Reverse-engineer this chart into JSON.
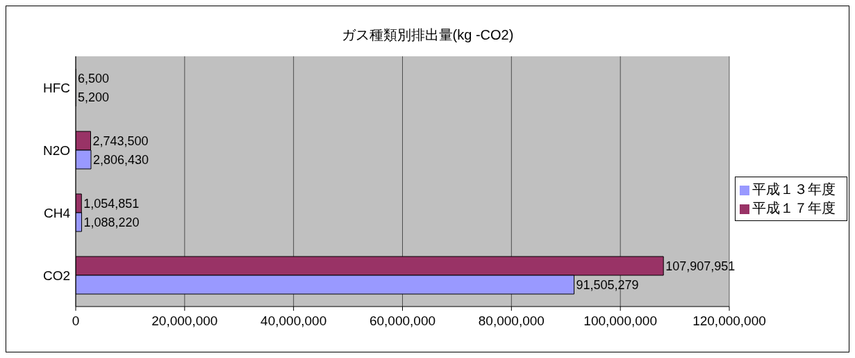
{
  "chart_data": {
    "type": "bar",
    "orientation": "horizontal",
    "title": "ガス種類別排出量(kg -CO2)",
    "categories": [
      "HFC",
      "N2O",
      "CH4",
      "CO2"
    ],
    "series": [
      {
        "name": "平成１７年度",
        "color": "#993366",
        "values": [
          6500,
          2743500,
          1054851,
          107907951
        ],
        "value_labels": [
          "6,500",
          "2,743,500",
          "1,054,851",
          "107,907,951"
        ]
      },
      {
        "name": "平成１３年度",
        "color": "#9999ff",
        "values": [
          5200,
          2806430,
          1088220,
          91505279
        ],
        "value_labels": [
          "5,200",
          "2,806,430",
          "1,088,220",
          "91,505,279"
        ]
      }
    ],
    "xlim": [
      0,
      120000000
    ],
    "xticks": [
      0,
      {
        "value": 20000000,
        "label": "20,000,000"
      },
      {
        "value": 40000000,
        "label": "40,000,000"
      },
      {
        "value": 60000000,
        "label": "60,000,000"
      },
      {
        "value": 80000000,
        "label": "80,000,000"
      },
      {
        "value": 100000000,
        "label": "100,000,000"
      },
      {
        "value": 120000000,
        "label": "120,000,000"
      }
    ],
    "grid": "x",
    "legend": "right"
  }
}
